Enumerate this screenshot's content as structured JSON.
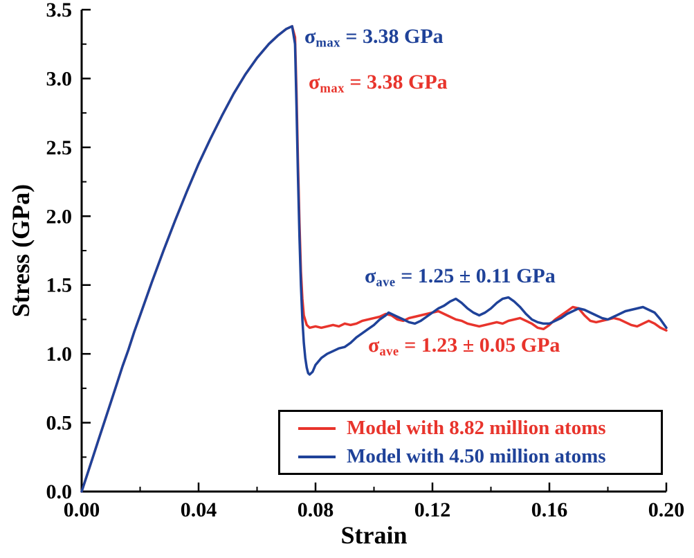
{
  "chart_data": {
    "type": "line",
    "title": "",
    "xlabel": "Strain",
    "ylabel": "Stress (GPa)",
    "xlim": [
      0,
      0.2
    ],
    "ylim": [
      0,
      3.5
    ],
    "grid": false,
    "x_ticks": [
      0.0,
      0.04,
      0.08,
      0.12,
      0.16,
      0.2
    ],
    "x_tick_labels": [
      "0.00",
      "0.04",
      "0.08",
      "0.12",
      "0.16",
      "0.20"
    ],
    "y_ticks": [
      0.0,
      0.5,
      1.0,
      1.5,
      2.0,
      2.5,
      3.0,
      3.5
    ],
    "y_tick_labels": [
      "0.0",
      "0.5",
      "1.0",
      "1.5",
      "2.0",
      "2.5",
      "3.0",
      "3.5"
    ],
    "legend_position": "bottom-right",
    "series": [
      {
        "name": "Model with 8.82 million atoms",
        "color": "#e8342c",
        "sigma_max_gpa": 3.38,
        "sigma_ave_gpa": "1.23 ± 0.05",
        "points": [
          [
            0.0,
            0.0
          ],
          [
            0.002,
            0.13
          ],
          [
            0.004,
            0.26
          ],
          [
            0.006,
            0.39
          ],
          [
            0.008,
            0.52
          ],
          [
            0.01,
            0.65
          ],
          [
            0.012,
            0.78
          ],
          [
            0.014,
            0.91
          ],
          [
            0.016,
            1.03
          ],
          [
            0.018,
            1.16
          ],
          [
            0.02,
            1.28
          ],
          [
            0.024,
            1.52
          ],
          [
            0.028,
            1.75
          ],
          [
            0.032,
            1.97
          ],
          [
            0.036,
            2.18
          ],
          [
            0.04,
            2.38
          ],
          [
            0.044,
            2.56
          ],
          [
            0.048,
            2.73
          ],
          [
            0.052,
            2.89
          ],
          [
            0.056,
            3.03
          ],
          [
            0.06,
            3.15
          ],
          [
            0.064,
            3.25
          ],
          [
            0.067,
            3.31
          ],
          [
            0.07,
            3.36
          ],
          [
            0.072,
            3.38
          ],
          [
            0.073,
            3.3
          ],
          [
            0.0735,
            2.9
          ],
          [
            0.074,
            2.4
          ],
          [
            0.0745,
            1.95
          ],
          [
            0.075,
            1.6
          ],
          [
            0.0755,
            1.4
          ],
          [
            0.076,
            1.28
          ],
          [
            0.077,
            1.21
          ],
          [
            0.078,
            1.19
          ],
          [
            0.08,
            1.2
          ],
          [
            0.082,
            1.19
          ],
          [
            0.084,
            1.2
          ],
          [
            0.086,
            1.21
          ],
          [
            0.088,
            1.2
          ],
          [
            0.09,
            1.22
          ],
          [
            0.092,
            1.21
          ],
          [
            0.094,
            1.22
          ],
          [
            0.096,
            1.24
          ],
          [
            0.098,
            1.25
          ],
          [
            0.1,
            1.26
          ],
          [
            0.102,
            1.27
          ],
          [
            0.104,
            1.29
          ],
          [
            0.106,
            1.28
          ],
          [
            0.108,
            1.25
          ],
          [
            0.11,
            1.24
          ],
          [
            0.112,
            1.26
          ],
          [
            0.114,
            1.27
          ],
          [
            0.116,
            1.28
          ],
          [
            0.118,
            1.29
          ],
          [
            0.12,
            1.3
          ],
          [
            0.122,
            1.31
          ],
          [
            0.124,
            1.29
          ],
          [
            0.126,
            1.27
          ],
          [
            0.128,
            1.25
          ],
          [
            0.13,
            1.24
          ],
          [
            0.132,
            1.22
          ],
          [
            0.134,
            1.21
          ],
          [
            0.136,
            1.2
          ],
          [
            0.138,
            1.21
          ],
          [
            0.14,
            1.22
          ],
          [
            0.142,
            1.23
          ],
          [
            0.144,
            1.22
          ],
          [
            0.146,
            1.24
          ],
          [
            0.148,
            1.25
          ],
          [
            0.15,
            1.26
          ],
          [
            0.152,
            1.24
          ],
          [
            0.154,
            1.22
          ],
          [
            0.156,
            1.19
          ],
          [
            0.158,
            1.18
          ],
          [
            0.16,
            1.21
          ],
          [
            0.162,
            1.25
          ],
          [
            0.164,
            1.28
          ],
          [
            0.166,
            1.31
          ],
          [
            0.168,
            1.34
          ],
          [
            0.17,
            1.33
          ],
          [
            0.172,
            1.28
          ],
          [
            0.174,
            1.24
          ],
          [
            0.176,
            1.23
          ],
          [
            0.178,
            1.24
          ],
          [
            0.18,
            1.25
          ],
          [
            0.182,
            1.26
          ],
          [
            0.184,
            1.25
          ],
          [
            0.186,
            1.23
          ],
          [
            0.188,
            1.21
          ],
          [
            0.19,
            1.2
          ],
          [
            0.192,
            1.22
          ],
          [
            0.194,
            1.24
          ],
          [
            0.196,
            1.22
          ],
          [
            0.198,
            1.19
          ],
          [
            0.2,
            1.17
          ]
        ]
      },
      {
        "name": "Model with 4.50 million atoms",
        "color": "#1f4299",
        "sigma_max_gpa": 3.38,
        "sigma_ave_gpa": "1.25 ± 0.11",
        "points": [
          [
            0.0,
            0.0
          ],
          [
            0.002,
            0.13
          ],
          [
            0.004,
            0.26
          ],
          [
            0.006,
            0.39
          ],
          [
            0.008,
            0.52
          ],
          [
            0.01,
            0.65
          ],
          [
            0.012,
            0.78
          ],
          [
            0.014,
            0.91
          ],
          [
            0.016,
            1.03
          ],
          [
            0.018,
            1.16
          ],
          [
            0.02,
            1.28
          ],
          [
            0.024,
            1.52
          ],
          [
            0.028,
            1.75
          ],
          [
            0.032,
            1.97
          ],
          [
            0.036,
            2.18
          ],
          [
            0.04,
            2.38
          ],
          [
            0.044,
            2.56
          ],
          [
            0.048,
            2.73
          ],
          [
            0.052,
            2.89
          ],
          [
            0.056,
            3.03
          ],
          [
            0.06,
            3.15
          ],
          [
            0.064,
            3.25
          ],
          [
            0.067,
            3.31
          ],
          [
            0.07,
            3.36
          ],
          [
            0.072,
            3.38
          ],
          [
            0.073,
            3.25
          ],
          [
            0.0735,
            2.8
          ],
          [
            0.074,
            2.3
          ],
          [
            0.0745,
            1.85
          ],
          [
            0.075,
            1.5
          ],
          [
            0.0755,
            1.25
          ],
          [
            0.076,
            1.08
          ],
          [
            0.0765,
            0.97
          ],
          [
            0.077,
            0.9
          ],
          [
            0.0775,
            0.86
          ],
          [
            0.078,
            0.85
          ],
          [
            0.079,
            0.87
          ],
          [
            0.08,
            0.92
          ],
          [
            0.082,
            0.97
          ],
          [
            0.084,
            1.0
          ],
          [
            0.086,
            1.02
          ],
          [
            0.088,
            1.04
          ],
          [
            0.09,
            1.05
          ],
          [
            0.092,
            1.08
          ],
          [
            0.094,
            1.12
          ],
          [
            0.096,
            1.15
          ],
          [
            0.098,
            1.18
          ],
          [
            0.1,
            1.21
          ],
          [
            0.102,
            1.25
          ],
          [
            0.104,
            1.28
          ],
          [
            0.105,
            1.3
          ],
          [
            0.106,
            1.29
          ],
          [
            0.108,
            1.27
          ],
          [
            0.11,
            1.25
          ],
          [
            0.112,
            1.23
          ],
          [
            0.114,
            1.22
          ],
          [
            0.116,
            1.24
          ],
          [
            0.118,
            1.27
          ],
          [
            0.12,
            1.3
          ],
          [
            0.122,
            1.33
          ],
          [
            0.124,
            1.35
          ],
          [
            0.126,
            1.38
          ],
          [
            0.128,
            1.4
          ],
          [
            0.13,
            1.37
          ],
          [
            0.132,
            1.33
          ],
          [
            0.134,
            1.3
          ],
          [
            0.136,
            1.28
          ],
          [
            0.138,
            1.3
          ],
          [
            0.14,
            1.33
          ],
          [
            0.142,
            1.37
          ],
          [
            0.144,
            1.4
          ],
          [
            0.146,
            1.41
          ],
          [
            0.148,
            1.38
          ],
          [
            0.15,
            1.34
          ],
          [
            0.152,
            1.29
          ],
          [
            0.154,
            1.25
          ],
          [
            0.156,
            1.23
          ],
          [
            0.158,
            1.22
          ],
          [
            0.16,
            1.22
          ],
          [
            0.162,
            1.24
          ],
          [
            0.164,
            1.26
          ],
          [
            0.166,
            1.29
          ],
          [
            0.168,
            1.31
          ],
          [
            0.17,
            1.33
          ],
          [
            0.172,
            1.32
          ],
          [
            0.174,
            1.3
          ],
          [
            0.176,
            1.28
          ],
          [
            0.178,
            1.26
          ],
          [
            0.18,
            1.25
          ],
          [
            0.182,
            1.27
          ],
          [
            0.184,
            1.29
          ],
          [
            0.186,
            1.31
          ],
          [
            0.188,
            1.32
          ],
          [
            0.19,
            1.33
          ],
          [
            0.192,
            1.34
          ],
          [
            0.194,
            1.32
          ],
          [
            0.196,
            1.3
          ],
          [
            0.198,
            1.25
          ],
          [
            0.2,
            1.19
          ]
        ]
      }
    ],
    "annotations": [
      {
        "sigma": "σ",
        "sub": "max",
        "rest": " = 3.38 GPa",
        "color": "#1f4299"
      },
      {
        "sigma": "σ",
        "sub": "max",
        "rest": " = 3.38 GPa",
        "color": "#e8342c"
      },
      {
        "sigma": "σ",
        "sub": "ave",
        "rest": " = 1.25 ± 0.11 GPa",
        "color": "#1f4299"
      },
      {
        "sigma": "σ",
        "sub": "ave",
        "rest": " = 1.23 ± 0.05 GPa",
        "color": "#e8342c"
      }
    ]
  }
}
